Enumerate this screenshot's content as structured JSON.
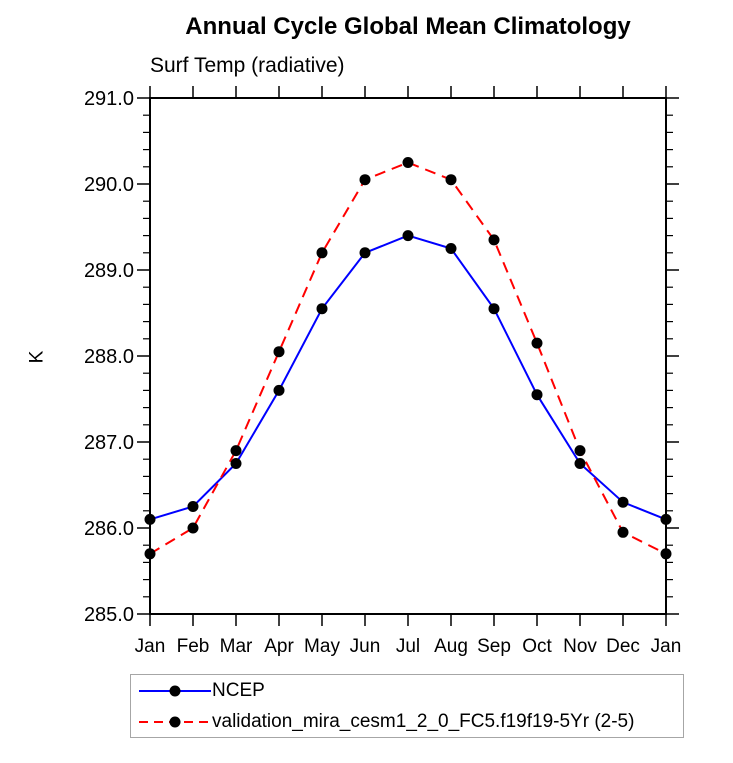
{
  "page": {
    "background": "#ffffff"
  },
  "chart_data": {
    "type": "line",
    "title": "Annual Cycle Global Mean Climatology",
    "subtitle": "Surf Temp (radiative)",
    "ylabel": "K",
    "xlabel": "",
    "categories": [
      "Jan",
      "Feb",
      "Mar",
      "Apr",
      "May",
      "Jun",
      "Jul",
      "Aug",
      "Sep",
      "Oct",
      "Nov",
      "Dec",
      "Jan"
    ],
    "ylim": [
      285.0,
      291.0
    ],
    "ytick_labels": [
      "285.0",
      "286.0",
      "287.0",
      "288.0",
      "289.0",
      "290.0",
      "291.0"
    ],
    "minor_tick_step": 0.2,
    "grid": false,
    "legend_position": "below-plot-left",
    "axis_color": "#000000",
    "text_color": "#000000",
    "marker_color": "#000000",
    "marker_shape": "filled-circle",
    "legend_border_color": "#a6a6a6",
    "series": [
      {
        "name": "NCEP",
        "color": "#0000ff",
        "line_style": "solid",
        "values": [
          286.1,
          286.25,
          286.75,
          287.6,
          288.55,
          289.2,
          289.4,
          289.25,
          288.55,
          287.55,
          286.75,
          286.3,
          286.1
        ]
      },
      {
        "name": "validation_mira_cesm1_2_0_FC5.f19f19-5Yr (2-5)",
        "color": "#ff0000",
        "line_style": "dashed",
        "values": [
          285.7,
          286.0,
          286.9,
          288.05,
          289.2,
          290.05,
          290.25,
          290.05,
          289.35,
          288.15,
          286.9,
          285.95,
          285.7
        ]
      }
    ]
  }
}
